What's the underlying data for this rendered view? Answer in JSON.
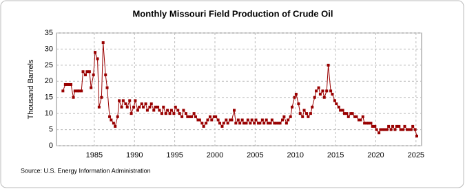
{
  "chart_data": {
    "type": "line",
    "title": "Monthly Missouri Field Production of Crude Oil",
    "y_label": "Thousand Barrels",
    "source": "Source: U.S. Energy Information Administration",
    "x": [
      1981.1,
      1981.4,
      1981.6,
      1981.9,
      1982.1,
      1982.4,
      1982.6,
      1982.9,
      1983.1,
      1983.4,
      1983.6,
      1983.9,
      1984.1,
      1984.4,
      1984.6,
      1984.9,
      1985.1,
      1985.4,
      1985.6,
      1985.9,
      1986.1,
      1986.4,
      1986.6,
      1986.9,
      1987.1,
      1987.4,
      1987.6,
      1987.9,
      1988.1,
      1988.4,
      1988.6,
      1988.9,
      1989.1,
      1989.4,
      1989.6,
      1989.9,
      1990.1,
      1990.4,
      1990.6,
      1990.9,
      1991.1,
      1991.4,
      1991.6,
      1991.9,
      1992.1,
      1992.4,
      1992.6,
      1992.9,
      1993.1,
      1993.4,
      1993.6,
      1993.9,
      1994.1,
      1994.4,
      1994.6,
      1994.9,
      1995.1,
      1995.4,
      1995.6,
      1995.9,
      1996.1,
      1996.4,
      1996.6,
      1996.9,
      1997.1,
      1997.4,
      1997.6,
      1997.9,
      1998.1,
      1998.4,
      1998.6,
      1998.9,
      1999.1,
      1999.4,
      1999.6,
      1999.9,
      2000.1,
      2000.4,
      2000.6,
      2000.9,
      2001.1,
      2001.4,
      2001.6,
      2001.9,
      2002.1,
      2002.4,
      2002.6,
      2002.9,
      2003.1,
      2003.4,
      2003.6,
      2003.9,
      2004.1,
      2004.4,
      2004.6,
      2004.9,
      2005.1,
      2005.4,
      2005.6,
      2005.9,
      2006.1,
      2006.4,
      2006.6,
      2006.9,
      2007.1,
      2007.4,
      2007.6,
      2007.9,
      2008.1,
      2008.4,
      2008.6,
      2008.9,
      2009.1,
      2009.4,
      2009.6,
      2009.9,
      2010.1,
      2010.4,
      2010.6,
      2010.9,
      2011.1,
      2011.4,
      2011.6,
      2011.9,
      2012.1,
      2012.4,
      2012.6,
      2012.9,
      2013.1,
      2013.4,
      2013.6,
      2013.9,
      2014.1,
      2014.4,
      2014.6,
      2014.9,
      2015.1,
      2015.4,
      2015.6,
      2015.9,
      2016.1,
      2016.4,
      2016.6,
      2016.9,
      2017.1,
      2017.4,
      2017.6,
      2017.9,
      2018.1,
      2018.4,
      2018.6,
      2018.9,
      2019.1,
      2019.4,
      2019.6,
      2019.9,
      2020.1,
      2020.4,
      2020.6,
      2020.9,
      2021.1,
      2021.4,
      2021.6,
      2021.9,
      2022.1,
      2022.4,
      2022.6,
      2022.9,
      2023.1,
      2023.4,
      2023.6,
      2023.9,
      2024.1,
      2024.4,
      2024.6,
      2024.9,
      2025.1
    ],
    "series": [
      {
        "name": "Missouri Field Production of Crude Oil",
        "color": "#990000",
        "values": [
          17,
          19,
          19,
          19,
          19,
          15,
          17,
          17,
          17,
          17,
          23,
          22,
          23,
          23,
          18,
          22,
          29,
          27,
          12,
          15,
          32,
          22,
          18,
          9,
          8,
          7,
          6,
          9,
          14,
          12,
          14,
          13,
          12,
          14,
          10,
          12,
          14,
          11,
          12,
          13,
          12,
          13,
          11,
          12,
          13,
          11,
          12,
          12,
          11,
          10,
          12,
          10,
          11,
          10,
          11,
          10,
          12,
          11,
          10,
          9,
          11,
          10,
          9,
          9,
          9,
          10,
          9,
          8,
          8,
          7,
          6,
          7,
          8,
          9,
          8,
          9,
          9,
          8,
          7,
          6,
          7,
          8,
          7,
          8,
          8,
          11,
          7,
          8,
          7,
          8,
          7,
          7,
          8,
          7,
          8,
          7,
          8,
          7,
          7,
          8,
          7,
          8,
          7,
          7,
          8,
          7,
          7,
          7,
          7,
          8,
          9,
          7,
          8,
          9,
          12,
          15,
          16,
          13,
          10,
          9,
          11,
          10,
          9,
          10,
          12,
          15,
          17,
          18,
          16,
          17,
          15,
          17,
          25,
          17,
          16,
          14,
          13,
          12,
          11,
          11,
          10,
          10,
          9,
          10,
          10,
          9,
          9,
          8,
          8,
          9,
          7,
          7,
          7,
          7,
          6,
          6,
          5,
          4,
          5,
          5,
          5,
          5,
          6,
          5,
          6,
          5,
          6,
          6,
          5,
          5,
          6,
          5,
          5,
          5,
          6,
          5,
          3
        ]
      }
    ],
    "xlim": [
      1980.3,
      2025.7
    ],
    "xticks": [
      1985,
      1990,
      1995,
      2000,
      2005,
      2010,
      2015,
      2020,
      2025
    ],
    "ylim": [
      0,
      35
    ],
    "yticks": [
      0,
      5,
      10,
      15,
      20,
      25,
      30,
      35
    ],
    "grid": true
  }
}
